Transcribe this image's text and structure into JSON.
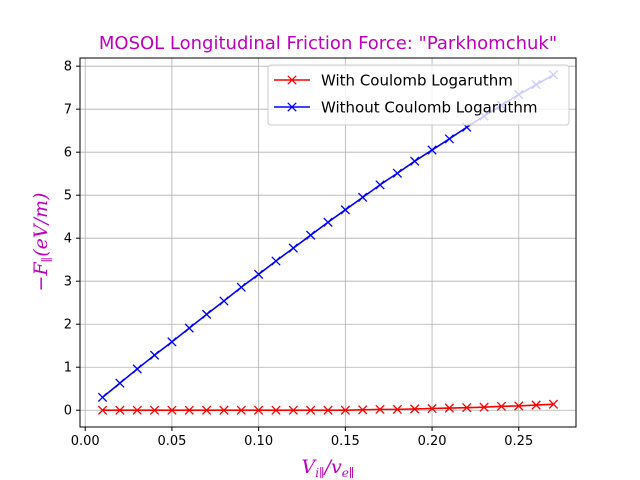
{
  "chart_data": {
    "type": "line",
    "title": "MOSOL Longitudinal Friction Force: \"Parkhomchuk\"",
    "xlabel": "V_{i∥}/v_{e∥}",
    "ylabel": "−F_{∥}(eV/m)",
    "label_color": "#bf00bf",
    "xlim": [
      -0.003,
      0.283
    ],
    "ylim": [
      -0.39,
      8.19
    ],
    "xticks": [
      "0.00",
      "0.05",
      "0.10",
      "0.15",
      "0.20",
      "0.25"
    ],
    "yticks": [
      "0",
      "1",
      "2",
      "3",
      "4",
      "5",
      "6",
      "7",
      "8"
    ],
    "grid": true,
    "legend_position": "top-right",
    "x": [
      0.01,
      0.02,
      0.03,
      0.04,
      0.05,
      0.06,
      0.07,
      0.08,
      0.09,
      0.1,
      0.11,
      0.12,
      0.13,
      0.14,
      0.15,
      0.16,
      0.17,
      0.18,
      0.19,
      0.2,
      0.21,
      0.22,
      0.23,
      0.24,
      0.25,
      0.26,
      0.27
    ],
    "series": [
      {
        "name": "With Coulomb Logaruthm",
        "color": "#ff0000",
        "marker": "x",
        "values": [
          0.0,
          0.0,
          0.0,
          0.0,
          0.0,
          0.0,
          0.0,
          0.0,
          0.0,
          0.0,
          0.0,
          0.0,
          0.0,
          0.0,
          0.0,
          0.01,
          0.02,
          0.02,
          0.03,
          0.04,
          0.05,
          0.06,
          0.07,
          0.09,
          0.1,
          0.12,
          0.14
        ]
      },
      {
        "name": "Without Coulomb Logaruthm",
        "color": "#0000ff",
        "marker": "x",
        "values": [
          0.3,
          0.63,
          0.96,
          1.28,
          1.59,
          1.91,
          2.23,
          2.54,
          2.86,
          3.16,
          3.47,
          3.77,
          4.07,
          4.37,
          4.66,
          4.95,
          5.24,
          5.51,
          5.79,
          6.05,
          6.31,
          6.58,
          6.84,
          7.09,
          7.34,
          7.57,
          7.8
        ]
      }
    ]
  }
}
